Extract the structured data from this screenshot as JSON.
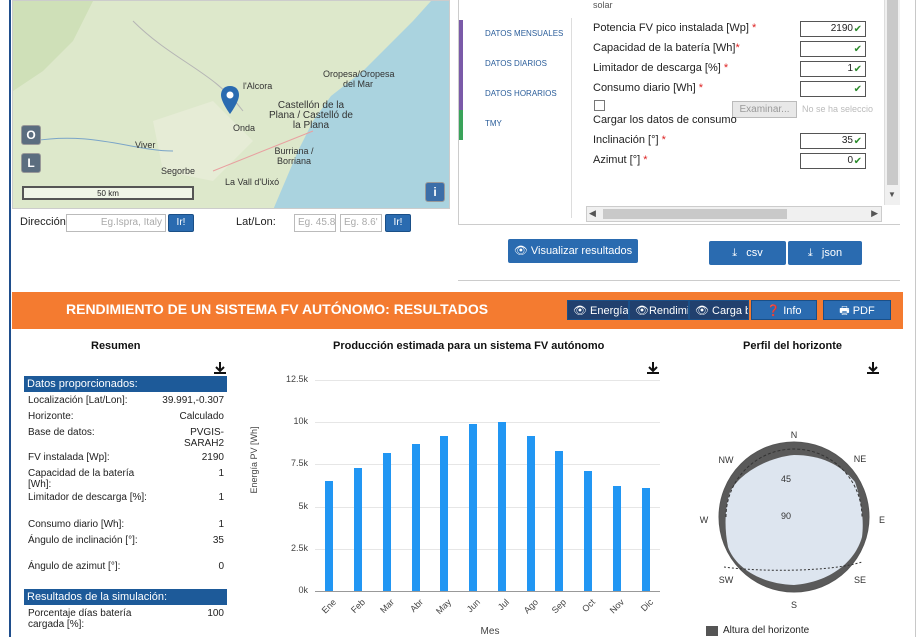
{
  "map": {
    "labels": [
      "l'Alcora",
      "Oropesa/Oropesa del Mar",
      "Castellón de la Plana / Castelló de la Plana",
      "Onda",
      "Viver",
      "Segorbe",
      "Burriana / Borriana",
      "La Vall d'Uixó"
    ],
    "btn_o": "O",
    "btn_l": "L",
    "btn_info": "i",
    "scale": "50 km"
  },
  "address": {
    "dir_label": "Dirección",
    "dir_placeholder": "Eg.Ispra, Italy",
    "go_label": "Ir!",
    "latlon_label": "Lat/Lon:",
    "lat_placeholder": "Eg. 45.8",
    "lon_placeholder": "Eg. 8.6'"
  },
  "tabs": [
    "DATOS MENSUALES",
    "DATOS DIARIOS",
    "DATOS HORARIOS",
    "TMY"
  ],
  "form": {
    "top_partial": "solar",
    "fields": [
      {
        "label": "Potencia FV pico instalada [Wp]",
        "value": "2190"
      },
      {
        "label": "Capacidad de la batería [Wh]",
        "value": ""
      },
      {
        "label": "Limitador de descarga [%]",
        "value": "1"
      },
      {
        "label": "Consumo diario [Wh]",
        "value": ""
      }
    ],
    "consumption_label": "Cargar los datos de consumo",
    "browse_label": "Examinar...",
    "no_file_label": "No se ha seleccio",
    "incl_label": "Inclinación [°]",
    "incl_value": "35",
    "azim_label": "Azimut [°]",
    "azim_value": "0",
    "req": "*"
  },
  "actions": {
    "visualize": "Visualizar resultados",
    "csv": "csv",
    "json": "json"
  },
  "results": {
    "title": "RENDIMIENTO DE UN SISTEMA FV AUTÓNOMO: RESULTADOS",
    "tab_energy": "Energía",
    "tab_rend": "Rendimi",
    "tab_carga": "Carga ba",
    "tab_info": "Info",
    "tab_pdf": "PDF"
  },
  "summary": {
    "title": "Resumen",
    "provided_head": "Datos proporcionados:",
    "rows": [
      {
        "k": "Localización [Lat/Lon]:",
        "v": "39.991,-0.307"
      },
      {
        "k": "Horizonte:",
        "v": "Calculado"
      },
      {
        "k": "Base de datos:",
        "v": "PVGIS-SARAH2"
      },
      {
        "k": "FV instalada [Wp]:",
        "v": "2190"
      },
      {
        "k": "Capacidad de la batería [Wh]:",
        "v": "1"
      },
      {
        "k": "Limitador de descarga [%]:",
        "v": "1"
      },
      {
        "k": "Consumo diario [Wh]:",
        "v": "1"
      },
      {
        "k": "Ángulo de inclinación [°]:",
        "v": "35"
      },
      {
        "k": "Ángulo de azimut [°]:",
        "v": "0"
      }
    ],
    "sim_head": "Resultados de la simulación:",
    "sim_rows": [
      {
        "k": "Porcentaje días batería cargada [%]:",
        "v": "100"
      }
    ]
  },
  "chart_data": {
    "type": "bar",
    "title": "Producción estimada para un sistema FV autónomo",
    "xlabel": "Mes",
    "ylabel": "Energía PV [Wh]",
    "ylim": [
      0,
      12500
    ],
    "yticks": [
      "0k",
      "2.5k",
      "5k",
      "7.5k",
      "10k",
      "12.5k"
    ],
    "categories": [
      "Ene",
      "Feb",
      "Mar",
      "Abr",
      "May",
      "Jun",
      "Jul",
      "Ago",
      "Sep",
      "Oct",
      "Nov",
      "Dic"
    ],
    "values": [
      6500,
      7300,
      8200,
      8700,
      9200,
      9900,
      10000,
      9200,
      8300,
      7100,
      6200,
      6100
    ],
    "color": "#2196f3"
  },
  "horizon": {
    "title": "Perfil del horizonte",
    "n": "N",
    "ne": "NE",
    "e": "E",
    "se": "SE",
    "s": "S",
    "sw": "SW",
    "w": "W",
    "nw": "NW",
    "r45": "45",
    "r90": "90",
    "legend": "Altura del horizonte"
  }
}
